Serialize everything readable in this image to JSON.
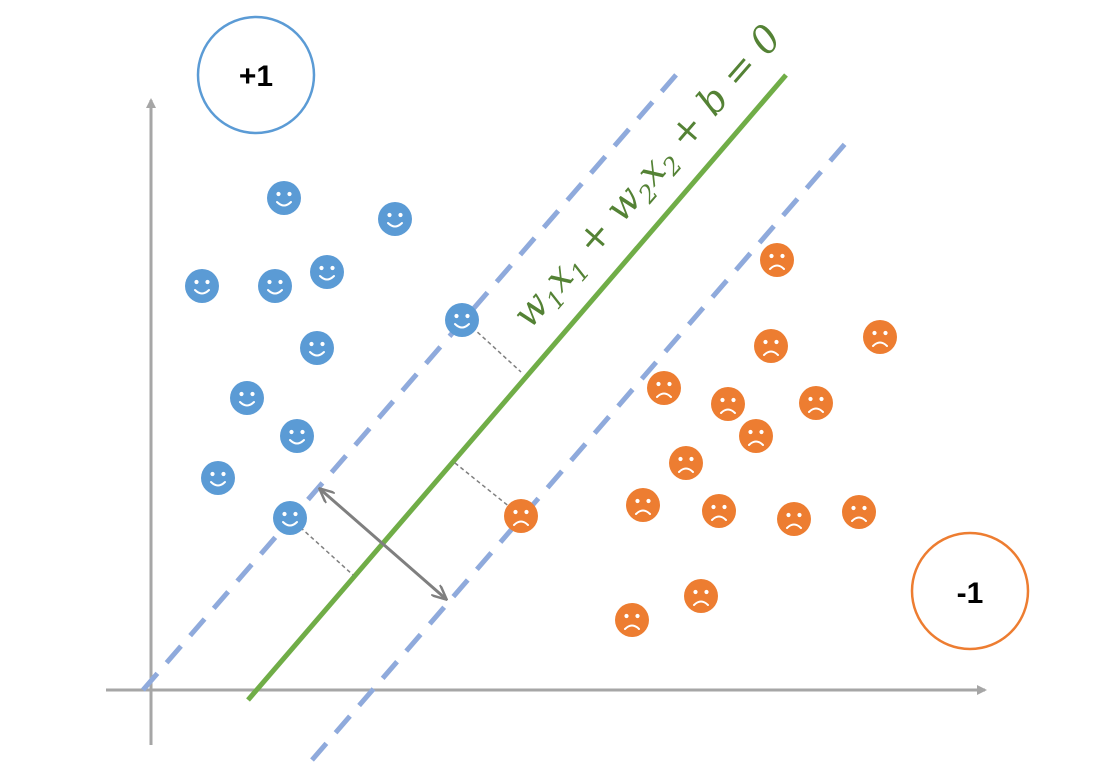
{
  "labels": {
    "positive": "+1",
    "negative": "-1"
  },
  "equation": {
    "w1": "w",
    "sub1": "1",
    "x1": "x",
    "sub1b": "1",
    "plus1": " + ",
    "w2": "w",
    "sub2": "2",
    "x2": "x",
    "sub2b": "2",
    "plus2": " + ",
    "b": "b",
    "equals": " = 0"
  },
  "colors": {
    "positive": "#5B9BD5",
    "negative": "#ED7D31",
    "hyperplane": "#70AD47",
    "equation": "#548235",
    "margin": "#8FAADC",
    "axis": "#A6A6A6",
    "arrow": "#7F7F7F"
  },
  "icons": {
    "positive": "smiley-face-icon",
    "negative": "frowning-face-icon"
  }
}
